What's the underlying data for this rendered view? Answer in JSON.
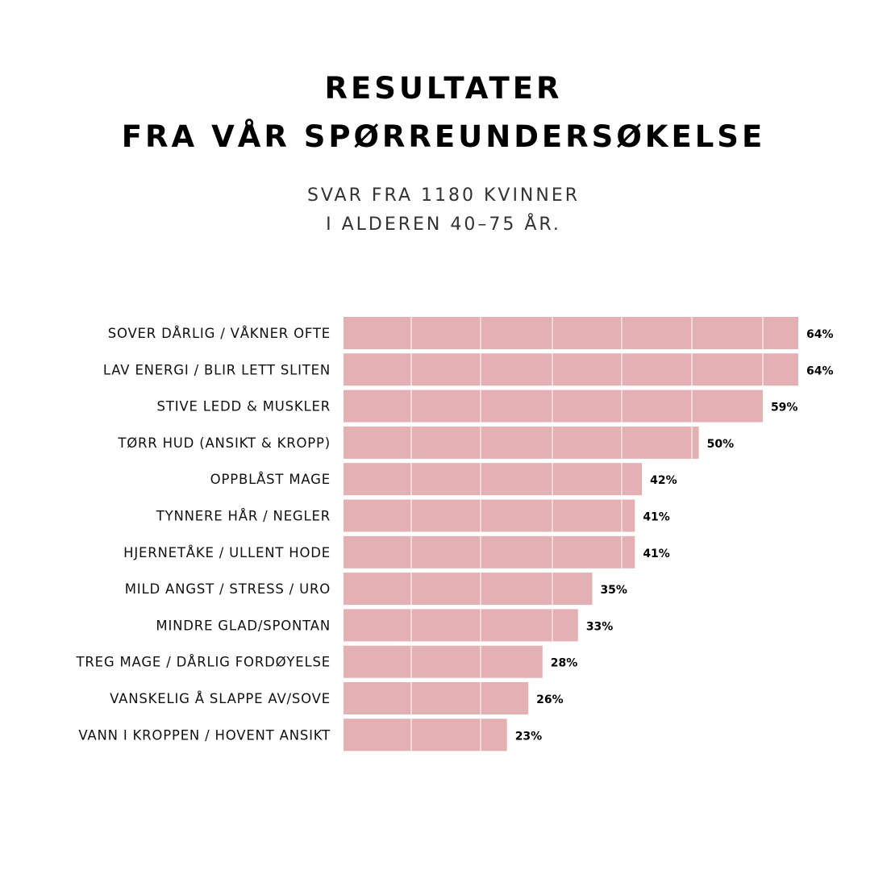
{
  "title_line1": "RESULTATER",
  "title_line2": "FRA VÅR SPØRREUNDERSØKELSE",
  "subtitle_line1": "SVAR FRA 1180 KVINNER",
  "subtitle_line2": "I ALDEREN 40–75 ÅR.",
  "colors": {
    "bar": "#e3b1b3",
    "gridline": "#ffffff",
    "text": "#111111"
  },
  "chart_data": {
    "type": "bar",
    "orientation": "horizontal",
    "categories": [
      "SOVER DÅRLIG / VÅKNER OFTE",
      "LAV ENERGI / BLIR LETT SLITEN",
      "STIVE LEDD & MUSKLER",
      "TØRR HUD (ANSIKT & KROPP)",
      "OPPBLÅST MAGE",
      "TYNNERE HÅR / NEGLER",
      "HJERNETÅKE / ULLENT HODE",
      "MILD ANGST / STRESS / URO",
      "MINDRE GLAD/SPONTAN",
      "TREG MAGE / DÅRLIG FORDØYELSE",
      "VANSKELIG Å SLAPPE AV/SOVE",
      "VANN I KROPPEN / HOVENT ANSIKT"
    ],
    "values": [
      64,
      64,
      59,
      50,
      42,
      41,
      41,
      35,
      33,
      28,
      26,
      23
    ],
    "data_labels": [
      "64%",
      "64%",
      "59%",
      "50%",
      "42%",
      "41%",
      "41%",
      "35%",
      "33%",
      "28%",
      "26%",
      "23%"
    ],
    "unit": "%",
    "xlim": [
      0,
      64
    ],
    "grid": true,
    "legend": "none"
  }
}
